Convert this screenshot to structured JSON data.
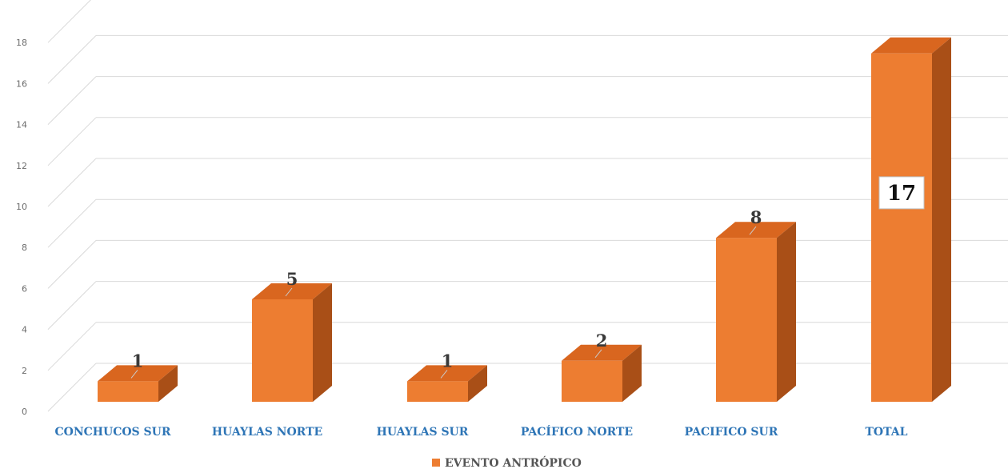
{
  "chart_data": {
    "type": "bar",
    "categories": [
      "CONCHUCOS SUR",
      "HUAYLAS NORTE",
      "HUAYLAS SUR",
      "PACÍFICO NORTE",
      "PACIFICO SUR",
      "TOTAL"
    ],
    "series": [
      {
        "name": "EVENTO ANTRÓPICO",
        "values": [
          1,
          5,
          1,
          2,
          8,
          17
        ]
      }
    ],
    "ylim": [
      0,
      18
    ],
    "yticks": [
      "0",
      "2",
      "4",
      "6",
      "8",
      "10",
      "12",
      "14",
      "16",
      "18"
    ],
    "grid": true,
    "legend_position": "bottom",
    "style": "3d-column"
  },
  "colors": {
    "front": "#ed7d31",
    "top": "#d9661f",
    "side": "#a94f17",
    "grid": "#d9d9d9",
    "category_text": "#2e75b6"
  }
}
